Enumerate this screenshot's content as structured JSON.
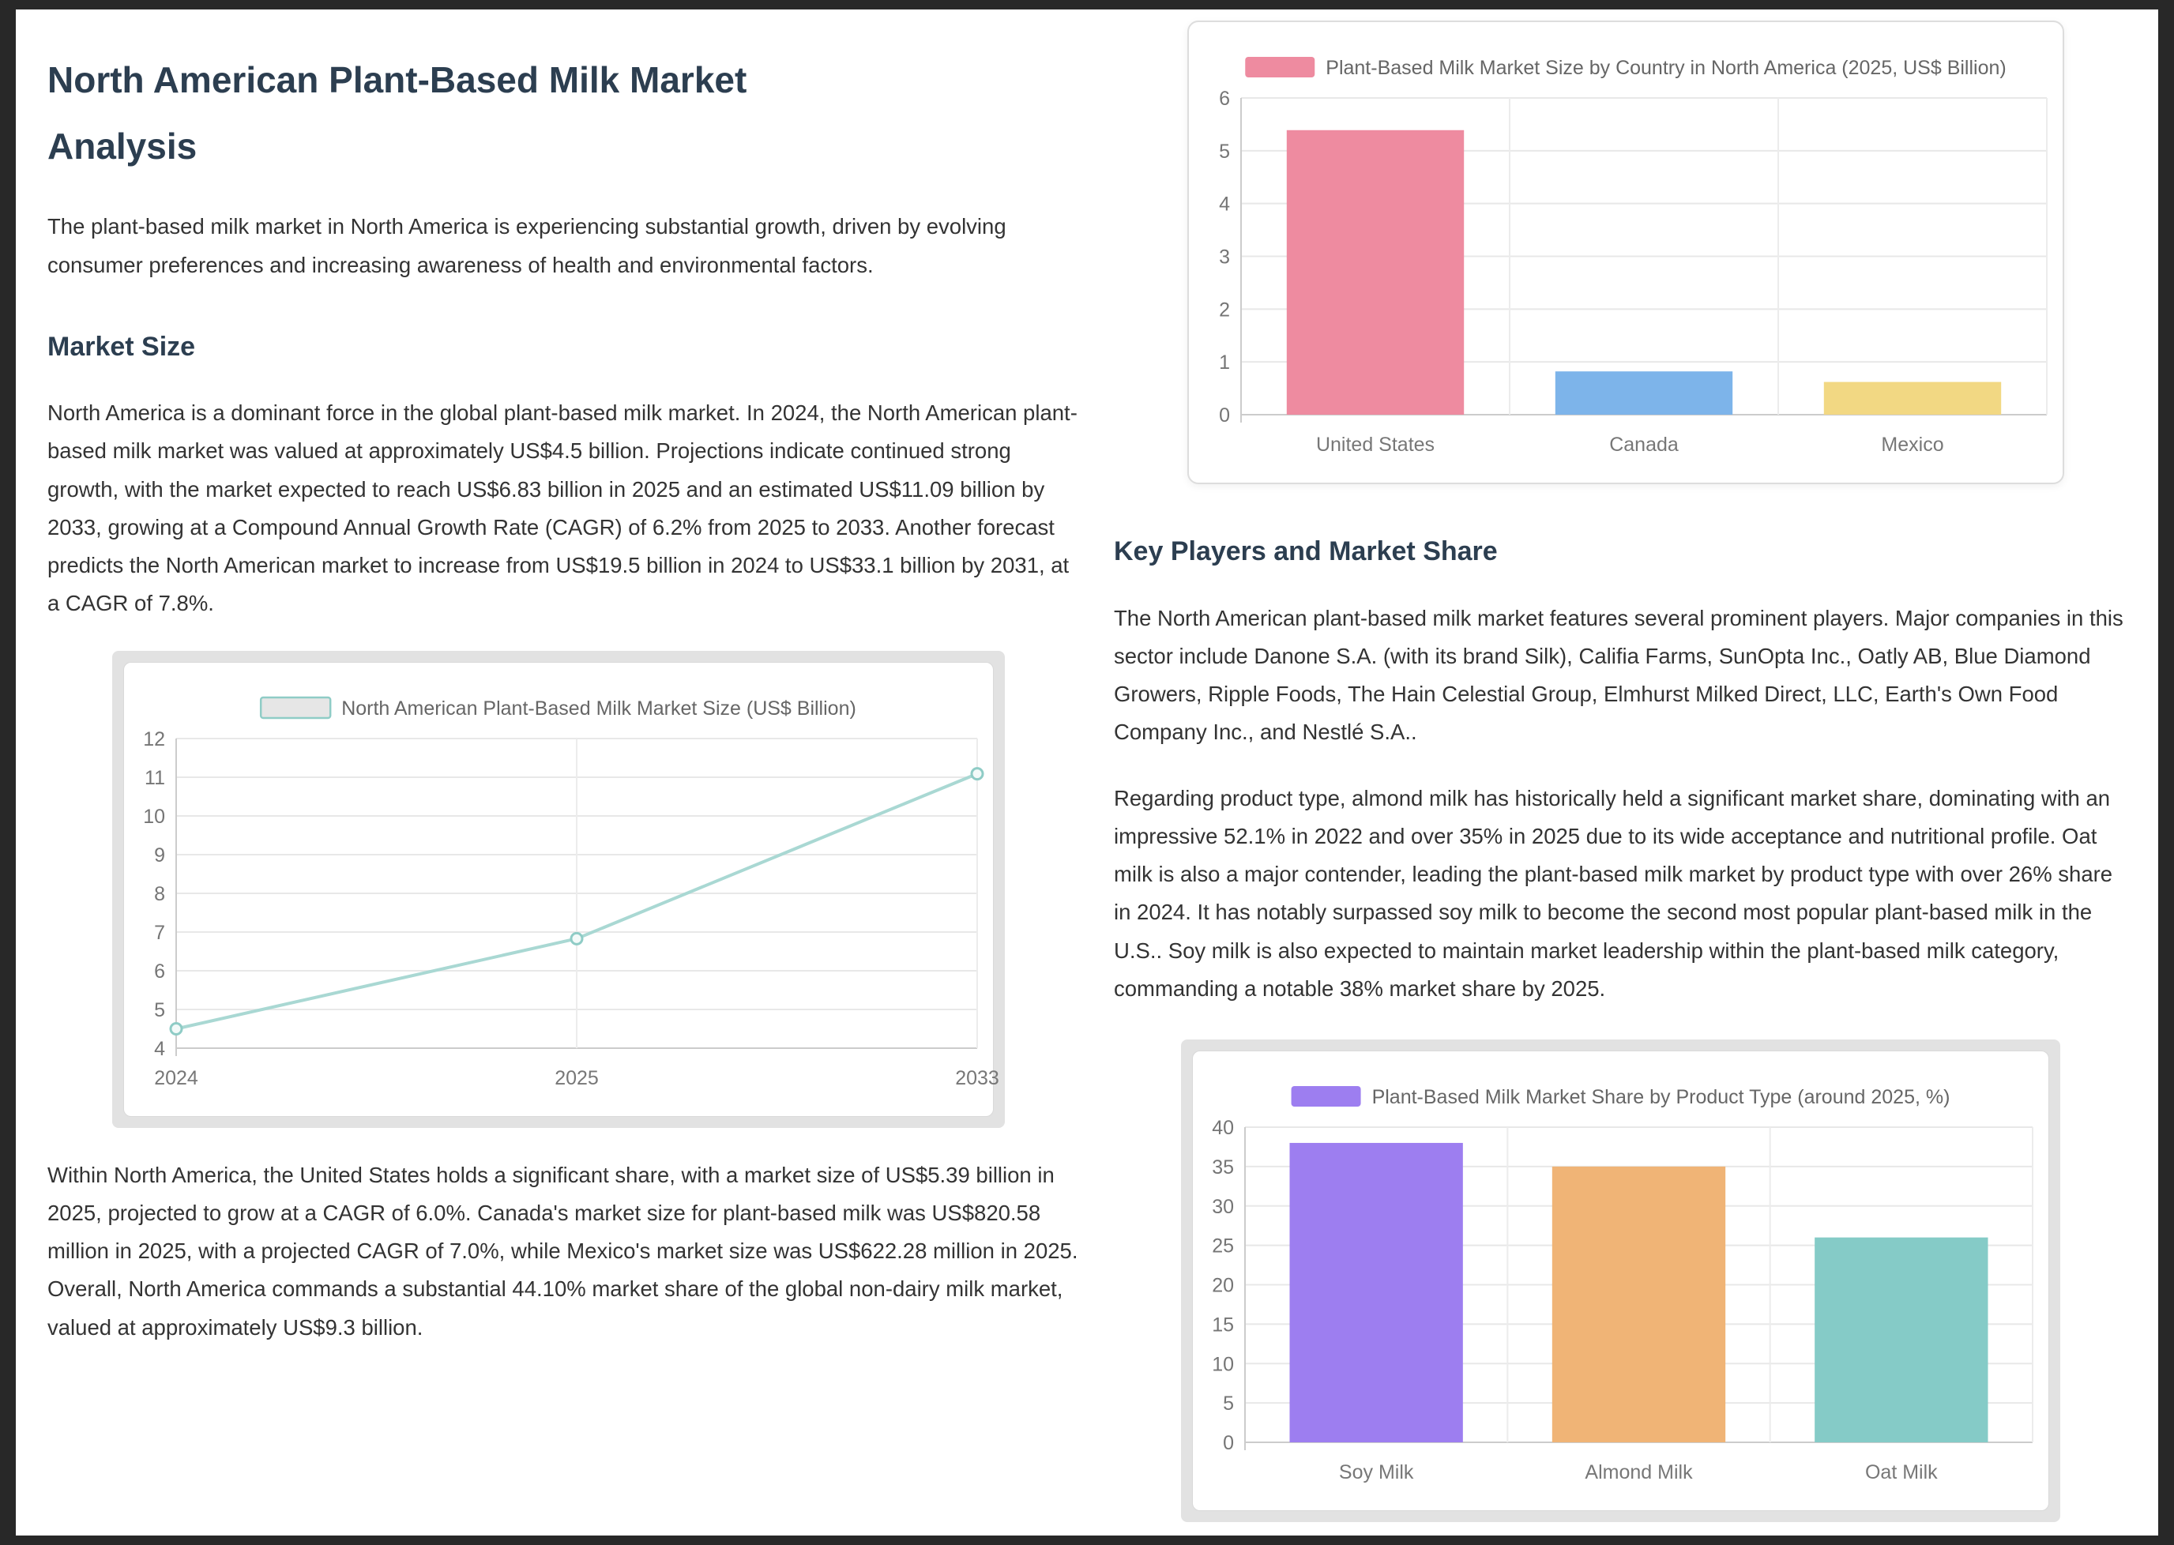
{
  "page": {
    "title": "North American Plant-Based Milk Market Analysis",
    "intro": "The plant-based milk market in North America is experiencing substantial growth, driven by evolving consumer preferences and increasing awareness of health and environmental factors.",
    "sections": {
      "market_size": {
        "heading": "Market Size",
        "p1": "North America is a dominant force in the global plant-based milk market. In 2024, the North American plant-based milk market was valued at approximately US$4.5 billion. Projections indicate continued strong growth, with the market expected to reach US$6.83 billion in 2025 and an estimated US$11.09 billion by 2033, growing at a Compound Annual Growth Rate (CAGR) of 6.2% from 2025 to 2033. Another forecast predicts the North American market to increase from US$19.5 billion in 2024 to US$33.1 billion by 2031, at a CAGR of 7.8%.",
        "p2": "Within North America, the United States holds a significant share, with a market size of US$5.39 billion in 2025, projected to grow at a CAGR of 6.0%. Canada's market size for plant-based milk was US$820.58 million in 2025, with a projected CAGR of 7.0%, while Mexico's market size was US$622.28 million in 2025. Overall, North America commands a substantial 44.10% market share of the global non-dairy milk market, valued at approximately US$9.3 billion."
      },
      "key_players": {
        "heading": "Key Players and Market Share",
        "p1": "The North American plant-based milk market features several prominent players. Major companies in this sector include Danone S.A. (with its brand Silk), Califia Farms, SunOpta Inc., Oatly AB, Blue Diamond Growers, Ripple Foods, The Hain Celestial Group, Elmhurst Milked Direct, LLC, Earth's Own Food Company Inc., and Nestlé S.A..",
        "p2": "Regarding product type, almond milk has historically held a significant market share, dominating with an impressive 52.1% in 2022 and over 35% in 2025 due to its wide acceptance and nutritional profile. Oat milk is also a major contender, leading the plant-based milk market by product type with over 26% share in 2024. It has notably surpassed soy milk to become the second most popular plant-based milk in the U.S.. Soy milk is also expected to maintain market leadership within the plant-based milk category, commanding a notable 38% market share by 2025."
      }
    }
  },
  "colors": {
    "frame_background": "#282828",
    "page_background": "#ffffff",
    "heading": "#2c3e50",
    "body_text": "#333333",
    "axis_label": "#757575",
    "legend_text": "#666666",
    "gridline": "#e8e8e8",
    "axis_line": "#cccccc",
    "chart_outer_frame": "#e2e2e2"
  },
  "chart_data": [
    {
      "type": "line",
      "legend": "North American Plant-Based Milk Market Size (US$ Billion)",
      "categories": [
        "2024",
        "2025",
        "2033"
      ],
      "values": [
        4.5,
        6.83,
        11.09
      ],
      "color": "#a9d8d3",
      "marker_stroke": "#8fccc6",
      "ylim": [
        4,
        12
      ],
      "ytick_step": 1,
      "grid": true,
      "legend_position": "top-center"
    },
    {
      "type": "bar",
      "legend": "Plant-Based Milk Market Size by Country in North America (2025, US$ Billion)",
      "categories": [
        "United States",
        "Canada",
        "Mexico"
      ],
      "values": [
        5.39,
        0.82,
        0.62
      ],
      "colors": [
        "#ee8ba0",
        "#7db4ea",
        "#f2d883"
      ],
      "ylim": [
        0,
        6
      ],
      "ytick_step": 1,
      "grid": true,
      "legend_position": "top-center"
    },
    {
      "type": "bar",
      "legend": "Plant-Based Milk Market Share by Product Type (around 2025, %)",
      "categories": [
        "Soy Milk",
        "Almond Milk",
        "Oat Milk"
      ],
      "values": [
        38,
        35,
        26
      ],
      "colors": [
        "#9d7ef0",
        "#f0b476",
        "#85cbc7"
      ],
      "ylim": [
        0,
        40
      ],
      "ytick_step": 5,
      "grid": true,
      "legend_position": "top-center"
    }
  ]
}
